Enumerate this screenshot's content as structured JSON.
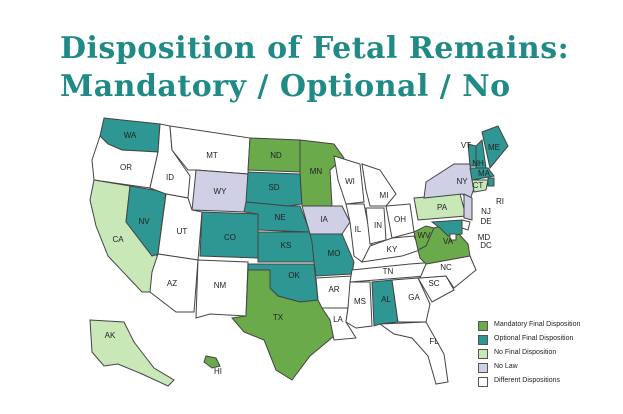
{
  "title": {
    "line1": "Disposition of Fetal Remains:",
    "line2": "Mandatory / Optional / No"
  },
  "colors": {
    "mandatory": "#6aaa4b",
    "optional": "#2e9793",
    "no_final": "#c8e8b8",
    "no_law": "#cfd0e6",
    "different": "#ffffff"
  },
  "legend": [
    {
      "key": "mandatory",
      "label": "Mandatory Final Disposition"
    },
    {
      "key": "optional",
      "label": "Optional Final Disposition"
    },
    {
      "key": "no_final",
      "label": "No Final Disposition"
    },
    {
      "key": "no_law",
      "label": "No Law"
    },
    {
      "key": "different",
      "label": "Different Dispositions"
    }
  ],
  "states": [
    {
      "abbr": "WA",
      "cat": "optional"
    },
    {
      "abbr": "OR",
      "cat": "different"
    },
    {
      "abbr": "CA",
      "cat": "no_final"
    },
    {
      "abbr": "NV",
      "cat": "optional"
    },
    {
      "abbr": "ID",
      "cat": "different"
    },
    {
      "abbr": "MT",
      "cat": "different"
    },
    {
      "abbr": "WY",
      "cat": "no_law"
    },
    {
      "abbr": "UT",
      "cat": "different"
    },
    {
      "abbr": "AZ",
      "cat": "different"
    },
    {
      "abbr": "CO",
      "cat": "optional"
    },
    {
      "abbr": "NM",
      "cat": "different"
    },
    {
      "abbr": "ND",
      "cat": "mandatory"
    },
    {
      "abbr": "SD",
      "cat": "optional"
    },
    {
      "abbr": "NE",
      "cat": "optional"
    },
    {
      "abbr": "KS",
      "cat": "optional"
    },
    {
      "abbr": "OK",
      "cat": "optional"
    },
    {
      "abbr": "TX",
      "cat": "mandatory"
    },
    {
      "abbr": "MN",
      "cat": "mandatory"
    },
    {
      "abbr": "IA",
      "cat": "no_law"
    },
    {
      "abbr": "MO",
      "cat": "optional"
    },
    {
      "abbr": "AR",
      "cat": "different"
    },
    {
      "abbr": "LA",
      "cat": "different"
    },
    {
      "abbr": "WI",
      "cat": "different"
    },
    {
      "abbr": "IL",
      "cat": "different"
    },
    {
      "abbr": "MI",
      "cat": "different"
    },
    {
      "abbr": "IN",
      "cat": "different"
    },
    {
      "abbr": "OH",
      "cat": "different"
    },
    {
      "abbr": "KY",
      "cat": "different"
    },
    {
      "abbr": "TN",
      "cat": "different"
    },
    {
      "abbr": "MS",
      "cat": "different"
    },
    {
      "abbr": "AL",
      "cat": "optional"
    },
    {
      "abbr": "GA",
      "cat": "different"
    },
    {
      "abbr": "FL",
      "cat": "different"
    },
    {
      "abbr": "SC",
      "cat": "different"
    },
    {
      "abbr": "NC",
      "cat": "different"
    },
    {
      "abbr": "VA",
      "cat": "mandatory"
    },
    {
      "abbr": "WV",
      "cat": "mandatory"
    },
    {
      "abbr": "PA",
      "cat": "no_final"
    },
    {
      "abbr": "NY",
      "cat": "no_law"
    },
    {
      "abbr": "VT",
      "cat": "optional"
    },
    {
      "abbr": "NH",
      "cat": "optional"
    },
    {
      "abbr": "ME",
      "cat": "optional"
    },
    {
      "abbr": "MA",
      "cat": "optional"
    },
    {
      "abbr": "RI",
      "cat": "optional"
    },
    {
      "abbr": "CT",
      "cat": "no_final"
    },
    {
      "abbr": "NJ",
      "cat": "no_law"
    },
    {
      "abbr": "DE",
      "cat": "different"
    },
    {
      "abbr": "MD",
      "cat": "optional"
    },
    {
      "abbr": "DC",
      "cat": "different"
    },
    {
      "abbr": "AK",
      "cat": "no_final"
    },
    {
      "abbr": "HI",
      "cat": "mandatory"
    }
  ]
}
